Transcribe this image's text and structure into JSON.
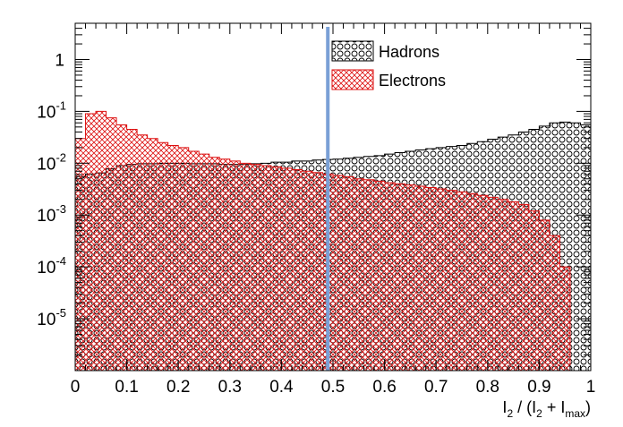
{
  "chart_data": {
    "type": "histogram",
    "xlabel": {
      "base": "I",
      "sub1": "2",
      "mid": " / (I",
      "sub2": "2",
      "mid2": " + I",
      "sub3": "max",
      "end": ")"
    },
    "xlim": [
      0,
      1
    ],
    "ylim": [
      1e-06,
      5
    ],
    "yscale": "log",
    "grid": false,
    "legend_placement": "top-center",
    "bin_width": 0.02,
    "x_ticks": [
      {
        "value": 0,
        "label": "0"
      },
      {
        "value": 0.1,
        "label": "0.1"
      },
      {
        "value": 0.2,
        "label": "0.2"
      },
      {
        "value": 0.3,
        "label": "0.3"
      },
      {
        "value": 0.4,
        "label": "0.4"
      },
      {
        "value": 0.5,
        "label": "0.5"
      },
      {
        "value": 0.6,
        "label": "0.6"
      },
      {
        "value": 0.7,
        "label": "0.7"
      },
      {
        "value": 0.8,
        "label": "0.8"
      },
      {
        "value": 0.9,
        "label": "0.9"
      },
      {
        "value": 1,
        "label": "1"
      }
    ],
    "y_ticks": [
      {
        "value": 1,
        "base": "1",
        "exp": ""
      },
      {
        "value": 0.1,
        "base": "10",
        "exp": "-1"
      },
      {
        "value": 0.01,
        "base": "10",
        "exp": "-2"
      },
      {
        "value": 0.001,
        "base": "10",
        "exp": "-3"
      },
      {
        "value": 0.0001,
        "base": "10",
        "exp": "-4"
      },
      {
        "value": 1e-05,
        "base": "10",
        "exp": "-5"
      }
    ],
    "cut_line": {
      "x": 0.49,
      "color": "#7aa0d6"
    },
    "series": [
      {
        "name": "Hadrons",
        "line_color": "#000000",
        "pattern": "circles",
        "values": [
          0.0055,
          0.0062,
          0.0065,
          0.0078,
          0.009,
          0.0095,
          0.0098,
          0.0098,
          0.01,
          0.01,
          0.01,
          0.0098,
          0.0098,
          0.0098,
          0.0095,
          0.0095,
          0.0095,
          0.0098,
          0.01,
          0.0105,
          0.0105,
          0.011,
          0.011,
          0.0115,
          0.0118,
          0.012,
          0.0125,
          0.013,
          0.0135,
          0.014,
          0.015,
          0.016,
          0.017,
          0.018,
          0.019,
          0.02,
          0.021,
          0.022,
          0.024,
          0.026,
          0.029,
          0.032,
          0.035,
          0.04,
          0.045,
          0.052,
          0.06,
          0.062,
          0.06,
          0.055
        ]
      },
      {
        "name": "Electrons",
        "line_color": "#dd1111",
        "pattern": "crosshatch",
        "values": [
          0.03,
          0.09,
          0.1,
          0.075,
          0.055,
          0.045,
          0.035,
          0.03,
          0.025,
          0.022,
          0.02,
          0.017,
          0.015,
          0.013,
          0.012,
          0.011,
          0.01,
          0.0095,
          0.009,
          0.0085,
          0.008,
          0.0075,
          0.007,
          0.0066,
          0.0062,
          0.0058,
          0.0055,
          0.005,
          0.0048,
          0.0045,
          0.0042,
          0.004,
          0.0038,
          0.0036,
          0.0034,
          0.0032,
          0.003,
          0.0028,
          0.0026,
          0.0024,
          0.0022,
          0.002,
          0.0018,
          0.0016,
          0.0012,
          0.0008,
          0.0004,
          0.0001,
          0.0,
          0.0
        ]
      }
    ]
  }
}
